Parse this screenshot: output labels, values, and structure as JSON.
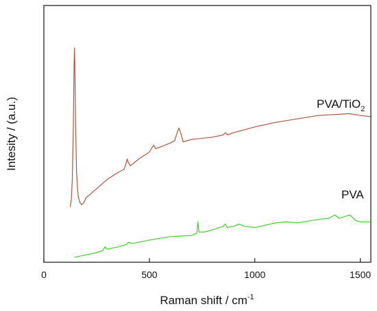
{
  "chart_data": {
    "type": "line",
    "xlabel": "Raman shift / cm",
    "xlabel_sup": "-1",
    "ylabel": "Intesity / (a.u.)",
    "xlim": [
      0,
      1550
    ],
    "ylim": [
      0,
      100
    ],
    "x_ticks": [
      0,
      500,
      1000,
      1500
    ],
    "x_tick_labels": [
      "0",
      "500",
      "1000",
      "1500"
    ],
    "y_ticks_labeled": false,
    "grid": false,
    "series": [
      {
        "name_parts": [
          "PVA/TiO",
          "2"
        ],
        "color": "#b5533c",
        "points": [
          [
            125,
            23
          ],
          [
            130,
            26
          ],
          [
            135,
            35
          ],
          [
            140,
            60
          ],
          [
            143,
            84
          ],
          [
            145,
            92.5
          ],
          [
            147,
            86
          ],
          [
            150,
            60
          ],
          [
            155,
            38
          ],
          [
            162,
            28
          ],
          [
            170,
            25
          ],
          [
            180,
            24
          ],
          [
            190,
            25
          ],
          [
            200,
            27
          ],
          [
            250,
            31
          ],
          [
            300,
            35
          ],
          [
            350,
            38
          ],
          [
            380,
            39.5
          ],
          [
            390,
            42
          ],
          [
            395,
            44
          ],
          [
            400,
            42.5
          ],
          [
            410,
            41
          ],
          [
            450,
            44
          ],
          [
            500,
            47
          ],
          [
            510,
            48.5
          ],
          [
            520,
            50
          ],
          [
            530,
            48.5
          ],
          [
            560,
            49.5
          ],
          [
            600,
            51
          ],
          [
            620,
            52
          ],
          [
            630,
            55
          ],
          [
            640,
            57.5
          ],
          [
            650,
            55
          ],
          [
            660,
            51.5
          ],
          [
            700,
            52.5
          ],
          [
            800,
            53.5
          ],
          [
            850,
            54.5
          ],
          [
            860,
            55.5
          ],
          [
            870,
            54.5
          ],
          [
            900,
            55.5
          ],
          [
            1000,
            58
          ],
          [
            1100,
            60
          ],
          [
            1200,
            61.5
          ],
          [
            1300,
            63
          ],
          [
            1400,
            63.5
          ],
          [
            1445,
            63.8
          ],
          [
            1500,
            63
          ],
          [
            1550,
            62.5
          ]
        ]
      },
      {
        "name": "PVA",
        "color": "#3ccf25",
        "points": [
          [
            145,
            1
          ],
          [
            200,
            2
          ],
          [
            250,
            3
          ],
          [
            280,
            4
          ],
          [
            290,
            5.5
          ],
          [
            300,
            4.5
          ],
          [
            350,
            5.5
          ],
          [
            390,
            6.5
          ],
          [
            400,
            7.5
          ],
          [
            420,
            7
          ],
          [
            500,
            8.5
          ],
          [
            600,
            10
          ],
          [
            700,
            10.5
          ],
          [
            725,
            11.5
          ],
          [
            730,
            16.5
          ],
          [
            735,
            12
          ],
          [
            760,
            12
          ],
          [
            800,
            13
          ],
          [
            850,
            14.5
          ],
          [
            860,
            15.5
          ],
          [
            870,
            14
          ],
          [
            900,
            14.5
          ],
          [
            925,
            15.5
          ],
          [
            950,
            14.5
          ],
          [
            1000,
            14
          ],
          [
            1100,
            16
          ],
          [
            1150,
            16.5
          ],
          [
            1200,
            16
          ],
          [
            1300,
            17.5
          ],
          [
            1350,
            18
          ],
          [
            1380,
            19.5
          ],
          [
            1400,
            18
          ],
          [
            1450,
            19.5
          ],
          [
            1480,
            17
          ],
          [
            1500,
            16.5
          ],
          [
            1550,
            16.5
          ]
        ]
      }
    ]
  }
}
